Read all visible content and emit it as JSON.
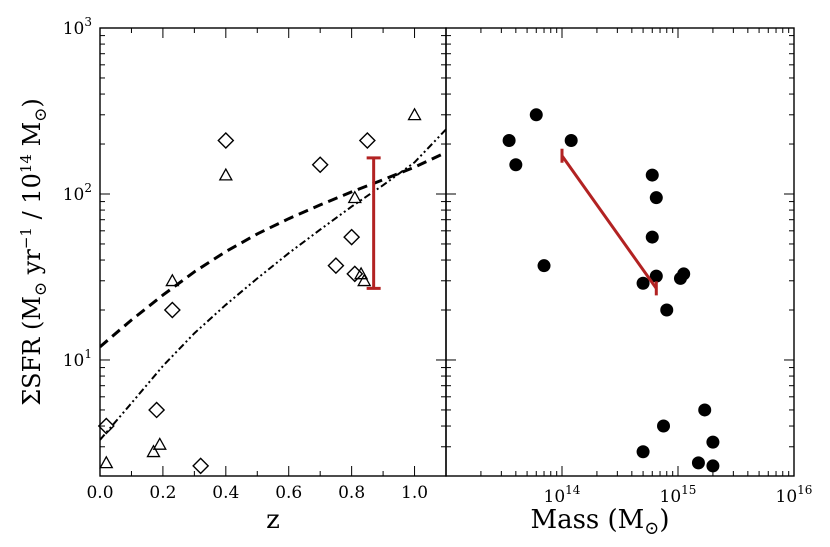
{
  "chart_data": [
    {
      "type": "scatter",
      "panel": "left",
      "xlabel": "z",
      "ylabel": "ΣSFR (M⊙ yr⁻¹ / 10¹⁴ M⊙)",
      "ylabel_parts": {
        "prefix": "ΣSFR (M",
        "sun": "⊙",
        "mid": " yr",
        "sup1": "−1",
        "mid2": " / 10",
        "sup2": "14",
        "mid3": " M",
        "sun2": "⊙",
        "suffix": ")"
      },
      "xlim": [
        0.0,
        1.1
      ],
      "ylim": [
        2,
        1000
      ],
      "yscale": "log",
      "xticks": [
        "0.0",
        "0.2",
        "0.4",
        "0.6",
        "0.8",
        "1.0"
      ],
      "xtick_values": [
        0.0,
        0.2,
        0.4,
        0.6,
        0.8,
        1.0
      ],
      "yticks": [
        {
          "value": 10,
          "base": "10",
          "exp": "1"
        },
        {
          "value": 100,
          "base": "10",
          "exp": "2"
        },
        {
          "value": 1000,
          "base": "10",
          "exp": "3"
        }
      ],
      "series": [
        {
          "name": "diamonds",
          "marker": "diamond",
          "points": [
            [
              0.02,
              4.0
            ],
            [
              0.18,
              5.0
            ],
            [
              0.23,
              20
            ],
            [
              0.32,
              2.3
            ],
            [
              0.4,
              210
            ],
            [
              0.7,
              150
            ],
            [
              0.75,
              37
            ],
            [
              0.8,
              55
            ],
            [
              0.81,
              33
            ],
            [
              0.85,
              210
            ]
          ]
        },
        {
          "name": "triangles",
          "marker": "triangle",
          "points": [
            [
              0.02,
              2.4
            ],
            [
              0.17,
              2.8
            ],
            [
              0.19,
              3.1
            ],
            [
              0.23,
              30
            ],
            [
              0.4,
              130
            ],
            [
              0.81,
              95
            ],
            [
              0.83,
              33
            ],
            [
              0.84,
              30
            ],
            [
              1.0,
              300
            ]
          ]
        },
        {
          "name": "dashed-fit",
          "style": "dashed",
          "points": [
            [
              0.0,
              12
            ],
            [
              0.1,
              17.4
            ],
            [
              0.2,
              24.6
            ],
            [
              0.3,
              34
            ],
            [
              0.4,
              45
            ],
            [
              0.5,
              57.5
            ],
            [
              0.6,
              71
            ],
            [
              0.7,
              86
            ],
            [
              0.8,
              103
            ],
            [
              0.9,
              122
            ],
            [
              1.0,
              145
            ],
            [
              1.1,
              178
            ]
          ]
        },
        {
          "name": "dashdot-fit",
          "style": "dashdot",
          "points": [
            [
              0.0,
              3.3
            ],
            [
              0.1,
              5.5
            ],
            [
              0.2,
              9.2
            ],
            [
              0.3,
              14.5
            ],
            [
              0.4,
              21.5
            ],
            [
              0.5,
              31
            ],
            [
              0.6,
              44
            ],
            [
              0.7,
              61
            ],
            [
              0.8,
              84
            ],
            [
              0.9,
              113
            ],
            [
              1.0,
              155
            ],
            [
              1.1,
              245
            ]
          ]
        },
        {
          "name": "error-bar",
          "color": "#b22222",
          "x": 0.87,
          "ylow": 27,
          "yhigh": 165
        }
      ]
    },
    {
      "type": "scatter",
      "panel": "right",
      "xlabel": "Mass (M⊙)",
      "xlabel_parts": {
        "prefix": "Mass (M",
        "sun": "⊙",
        "suffix": ")"
      },
      "xlim": [
        10000000000000.0,
        1e+16
      ],
      "xscale": "log",
      "ylim": [
        2,
        1000
      ],
      "yscale": "log",
      "xticks": [
        {
          "value": 100000000000000.0,
          "base": "10",
          "exp": "14"
        },
        {
          "value": 1000000000000000.0,
          "base": "10",
          "exp": "15"
        },
        {
          "value": 1e+16,
          "base": "10",
          "exp": "16"
        }
      ],
      "series": [
        {
          "name": "clusters",
          "marker": "circle",
          "points": [
            [
              35000000000000.0,
              210
            ],
            [
              40000000000000.0,
              150
            ],
            [
              60000000000000.0,
              300
            ],
            [
              70000000000000.0,
              37
            ],
            [
              120000000000000.0,
              210
            ],
            [
              500000000000000.0,
              29
            ],
            [
              500000000000000.0,
              2.8
            ],
            [
              600000000000000.0,
              130
            ],
            [
              600000000000000.0,
              55
            ],
            [
              650000000000000.0,
              95
            ],
            [
              650000000000000.0,
              32
            ],
            [
              750000000000000.0,
              4.0
            ],
            [
              800000000000000.0,
              20
            ],
            [
              1050000000000000.0,
              31
            ],
            [
              1120000000000000.0,
              33
            ],
            [
              1500000000000000.0,
              2.4
            ],
            [
              1700000000000000.0,
              5.0
            ],
            [
              2000000000000000.0,
              3.2
            ],
            [
              2000000000000000.0,
              2.3
            ]
          ]
        },
        {
          "name": "trend-line",
          "color": "#b22222",
          "points": [
            [
              100000000000000.0,
              170
            ],
            [
              650000000000000.0,
              27
            ]
          ]
        }
      ]
    }
  ]
}
